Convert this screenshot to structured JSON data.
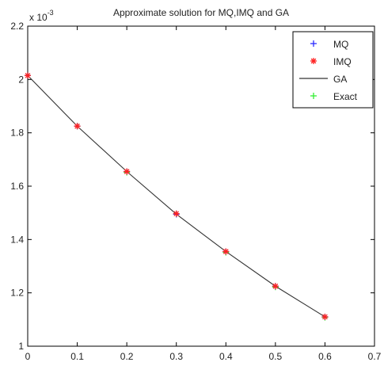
{
  "chart_data": {
    "type": "line",
    "title": "Approximate solution for MQ,IMQ and GA",
    "y_exponent_label": "x 10",
    "y_exponent_power": "-3",
    "xlim": [
      0,
      0.7
    ],
    "ylim": [
      1.0,
      2.2
    ],
    "x_ticks": [
      0,
      0.1,
      0.2,
      0.3,
      0.4,
      0.5,
      0.6,
      0.7
    ],
    "x_tick_labels": [
      "0",
      "0.1",
      "0.2",
      "0.3",
      "0.4",
      "0.5",
      "0.6",
      "0.7"
    ],
    "y_ticks": [
      1.0,
      1.2,
      1.4,
      1.6,
      1.8,
      2.0,
      2.2
    ],
    "y_tick_labels": [
      "1",
      "1.2",
      "1.4",
      "1.6",
      "1.8",
      "2",
      "2.2"
    ],
    "x": [
      0,
      0.1,
      0.2,
      0.3,
      0.4,
      0.5,
      0.6
    ],
    "series": [
      {
        "name": "MQ",
        "marker": "plus",
        "color": "#2b2bff",
        "values": [
          2.015,
          1.825,
          1.655,
          1.495,
          1.355,
          1.225,
          1.11
        ]
      },
      {
        "name": "IMQ",
        "marker": "asterisk",
        "color": "#ff2222",
        "values": [
          2.015,
          1.825,
          1.655,
          1.497,
          1.355,
          1.225,
          1.11
        ]
      },
      {
        "name": "GA",
        "marker": "line",
        "color": "#333333",
        "values": [
          2.015,
          1.825,
          1.655,
          1.495,
          1.355,
          1.225,
          1.11
        ]
      },
      {
        "name": "Exact",
        "marker": "plus",
        "color": "#33ee33",
        "values": [
          2.015,
          1.825,
          1.652,
          1.495,
          1.352,
          1.222,
          1.108
        ]
      }
    ],
    "legend_position": "top-right",
    "grid": false
  }
}
